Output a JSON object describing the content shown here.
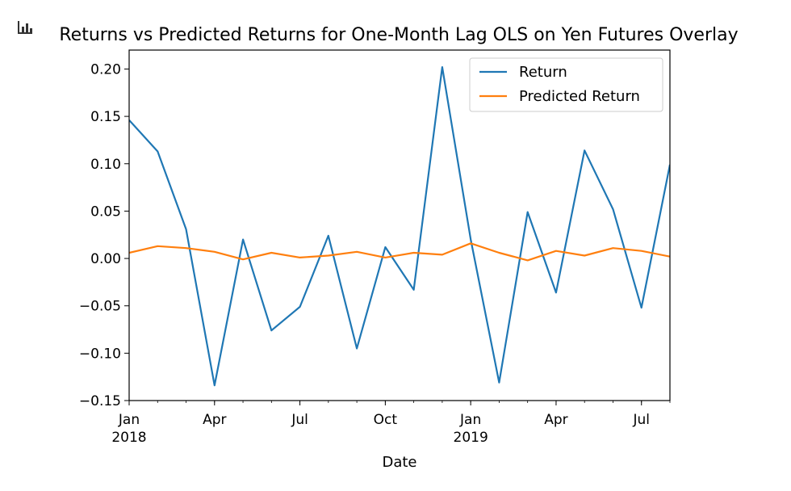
{
  "chart_data": {
    "type": "line",
    "title": "Returns vs Predicted Returns for One-Month Lag OLS on Yen Futures Overlay",
    "xlabel": "Date",
    "ylabel": "",
    "x": [
      "2018-01",
      "2018-02",
      "2018-03",
      "2018-04",
      "2018-05",
      "2018-06",
      "2018-07",
      "2018-08",
      "2018-09",
      "2018-10",
      "2018-11",
      "2018-12",
      "2019-01",
      "2019-02",
      "2019-03",
      "2019-04",
      "2019-05",
      "2019-06",
      "2019-07",
      "2019-08"
    ],
    "ylim": [
      -0.15,
      0.22
    ],
    "yticks": [
      -0.15,
      -0.1,
      -0.05,
      0.0,
      0.05,
      0.1,
      0.15,
      0.2
    ],
    "ytick_labels": [
      "−0.15",
      "−0.10",
      "−0.05",
      "0.00",
      "0.05",
      "0.10",
      "0.15",
      "0.20"
    ],
    "xticks": [
      {
        "date": "2018-01",
        "label": "Jan",
        "sublabel": "2018"
      },
      {
        "date": "2018-04",
        "label": "Apr",
        "sublabel": ""
      },
      {
        "date": "2018-07",
        "label": "Jul",
        "sublabel": ""
      },
      {
        "date": "2018-10",
        "label": "Oct",
        "sublabel": ""
      },
      {
        "date": "2019-01",
        "label": "Jan",
        "sublabel": "2019"
      },
      {
        "date": "2019-04",
        "label": "Apr",
        "sublabel": ""
      },
      {
        "date": "2019-07",
        "label": "Jul",
        "sublabel": ""
      }
    ],
    "series": [
      {
        "name": "Return",
        "color": "#1f77b4",
        "values": [
          0.146,
          0.113,
          0.031,
          -0.134,
          0.02,
          -0.076,
          -0.051,
          0.024,
          -0.095,
          0.012,
          -0.033,
          0.202,
          0.02,
          -0.131,
          0.049,
          -0.036,
          0.114,
          0.052,
          -0.052,
          0.099
        ]
      },
      {
        "name": "Predicted Return",
        "color": "#ff7f0e",
        "values": [
          0.006,
          0.013,
          0.011,
          0.007,
          -0.001,
          0.006,
          0.001,
          0.003,
          0.007,
          0.001,
          0.006,
          0.004,
          0.016,
          0.006,
          -0.002,
          0.008,
          0.003,
          0.011,
          0.008,
          0.002
        ]
      }
    ],
    "legend": "top-right",
    "grid": false
  }
}
